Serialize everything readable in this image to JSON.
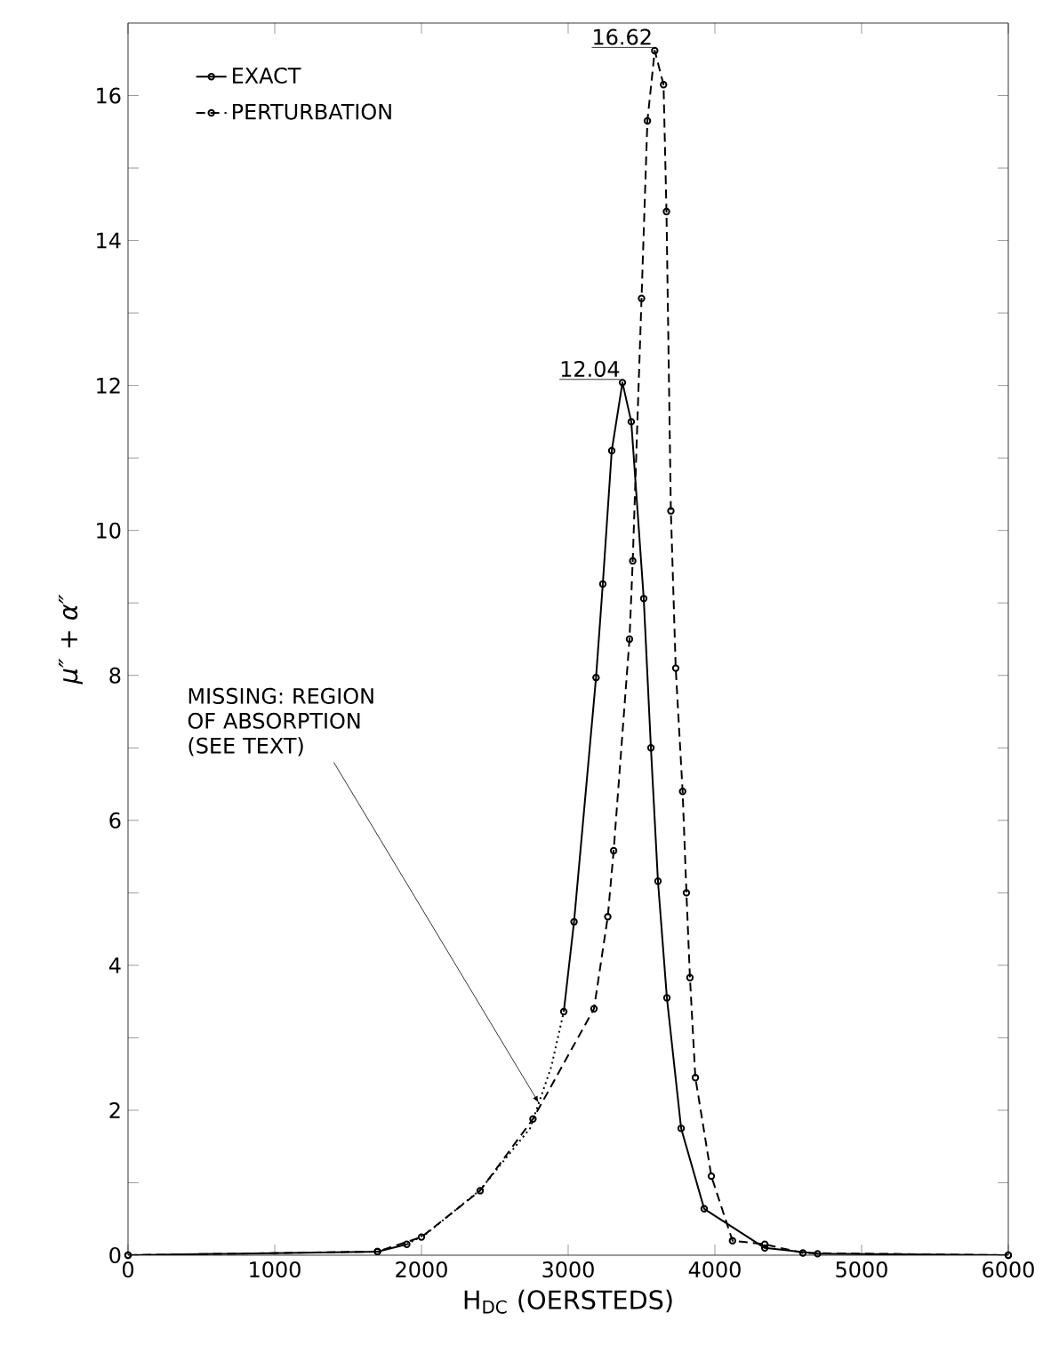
{
  "chart_data": {
    "type": "line",
    "xlabel": "H$_{DC}$ (OERSTEDS)",
    "ylabel": "μ″ + α″",
    "xlim": [
      0,
      6000
    ],
    "ylim": [
      0,
      17
    ],
    "xticks": [
      0,
      1000,
      2000,
      3000,
      4000,
      5000,
      6000
    ],
    "yticks": [
      0,
      {
        "value": 1,
        "label": null
      },
      2,
      {
        "value": 3,
        "label": null
      },
      4,
      {
        "value": 5,
        "label": null
      },
      6,
      {
        "value": 7,
        "label": null
      },
      8,
      {
        "value": 9,
        "label": null
      },
      10,
      {
        "value": 11,
        "label": null
      },
      12,
      {
        "value": 13,
        "label": null
      },
      14,
      {
        "value": 15,
        "label": null
      },
      16
    ],
    "grid": false,
    "legend": "top left",
    "series": [
      {
        "name": "EXACT",
        "color": "#000000",
        "line_style": "solid",
        "marker": "circle",
        "x": [
          0,
          1700,
          1900,
          2400,
          2970,
          3040,
          3190,
          3236,
          3297,
          3370,
          3430,
          3515,
          3564,
          3612,
          3673,
          3770,
          3927,
          4340,
          4700,
          6000
        ],
        "values": [
          0,
          0.05,
          0.15,
          null,
          3.36,
          4.6,
          7.97,
          9.26,
          11.1,
          12.04,
          11.5,
          9.06,
          7.0,
          5.16,
          3.55,
          1.75,
          0.64,
          0.1,
          0.02,
          0
        ]
      },
      {
        "name": "PERTURBATION",
        "color": "#000000",
        "line_style": "dashed",
        "marker": "circle",
        "x": [
          0,
          1700,
          2000,
          2400,
          2760,
          3176,
          3270,
          3310,
          3418,
          3440,
          3500,
          3540,
          3590,
          3650,
          3670,
          3700,
          3733,
          3780,
          3806,
          3830,
          3867,
          3976,
          4120,
          4340,
          4600,
          6000
        ],
        "values": [
          0,
          0.05,
          0.25,
          0.89,
          1.88,
          3.4,
          4.67,
          5.58,
          8.5,
          9.58,
          13.2,
          15.65,
          16.62,
          16.15,
          14.4,
          10.27,
          8.1,
          6.4,
          5.0,
          3.83,
          2.45,
          1.09,
          0.2,
          0.15,
          0.03,
          0
        ]
      },
      {
        "color": "#000000",
        "line_style": "dotted",
        "marker": "none",
        "x": [
          1900,
          2036,
          2400,
          2740,
          2800,
          2885,
          2970
        ],
        "values": [
          0.15,
          0.3,
          0.9,
          1.75,
          2.1,
          2.6,
          3.36
        ]
      }
    ],
    "annotations": [
      {
        "text": "16.62",
        "x": 3590,
        "y": 16.62
      },
      {
        "text": "12.04",
        "x": 3370,
        "y": 12.04
      },
      "MISSING: REGION OF ABSORPTION (SEE TEXT)"
    ]
  }
}
